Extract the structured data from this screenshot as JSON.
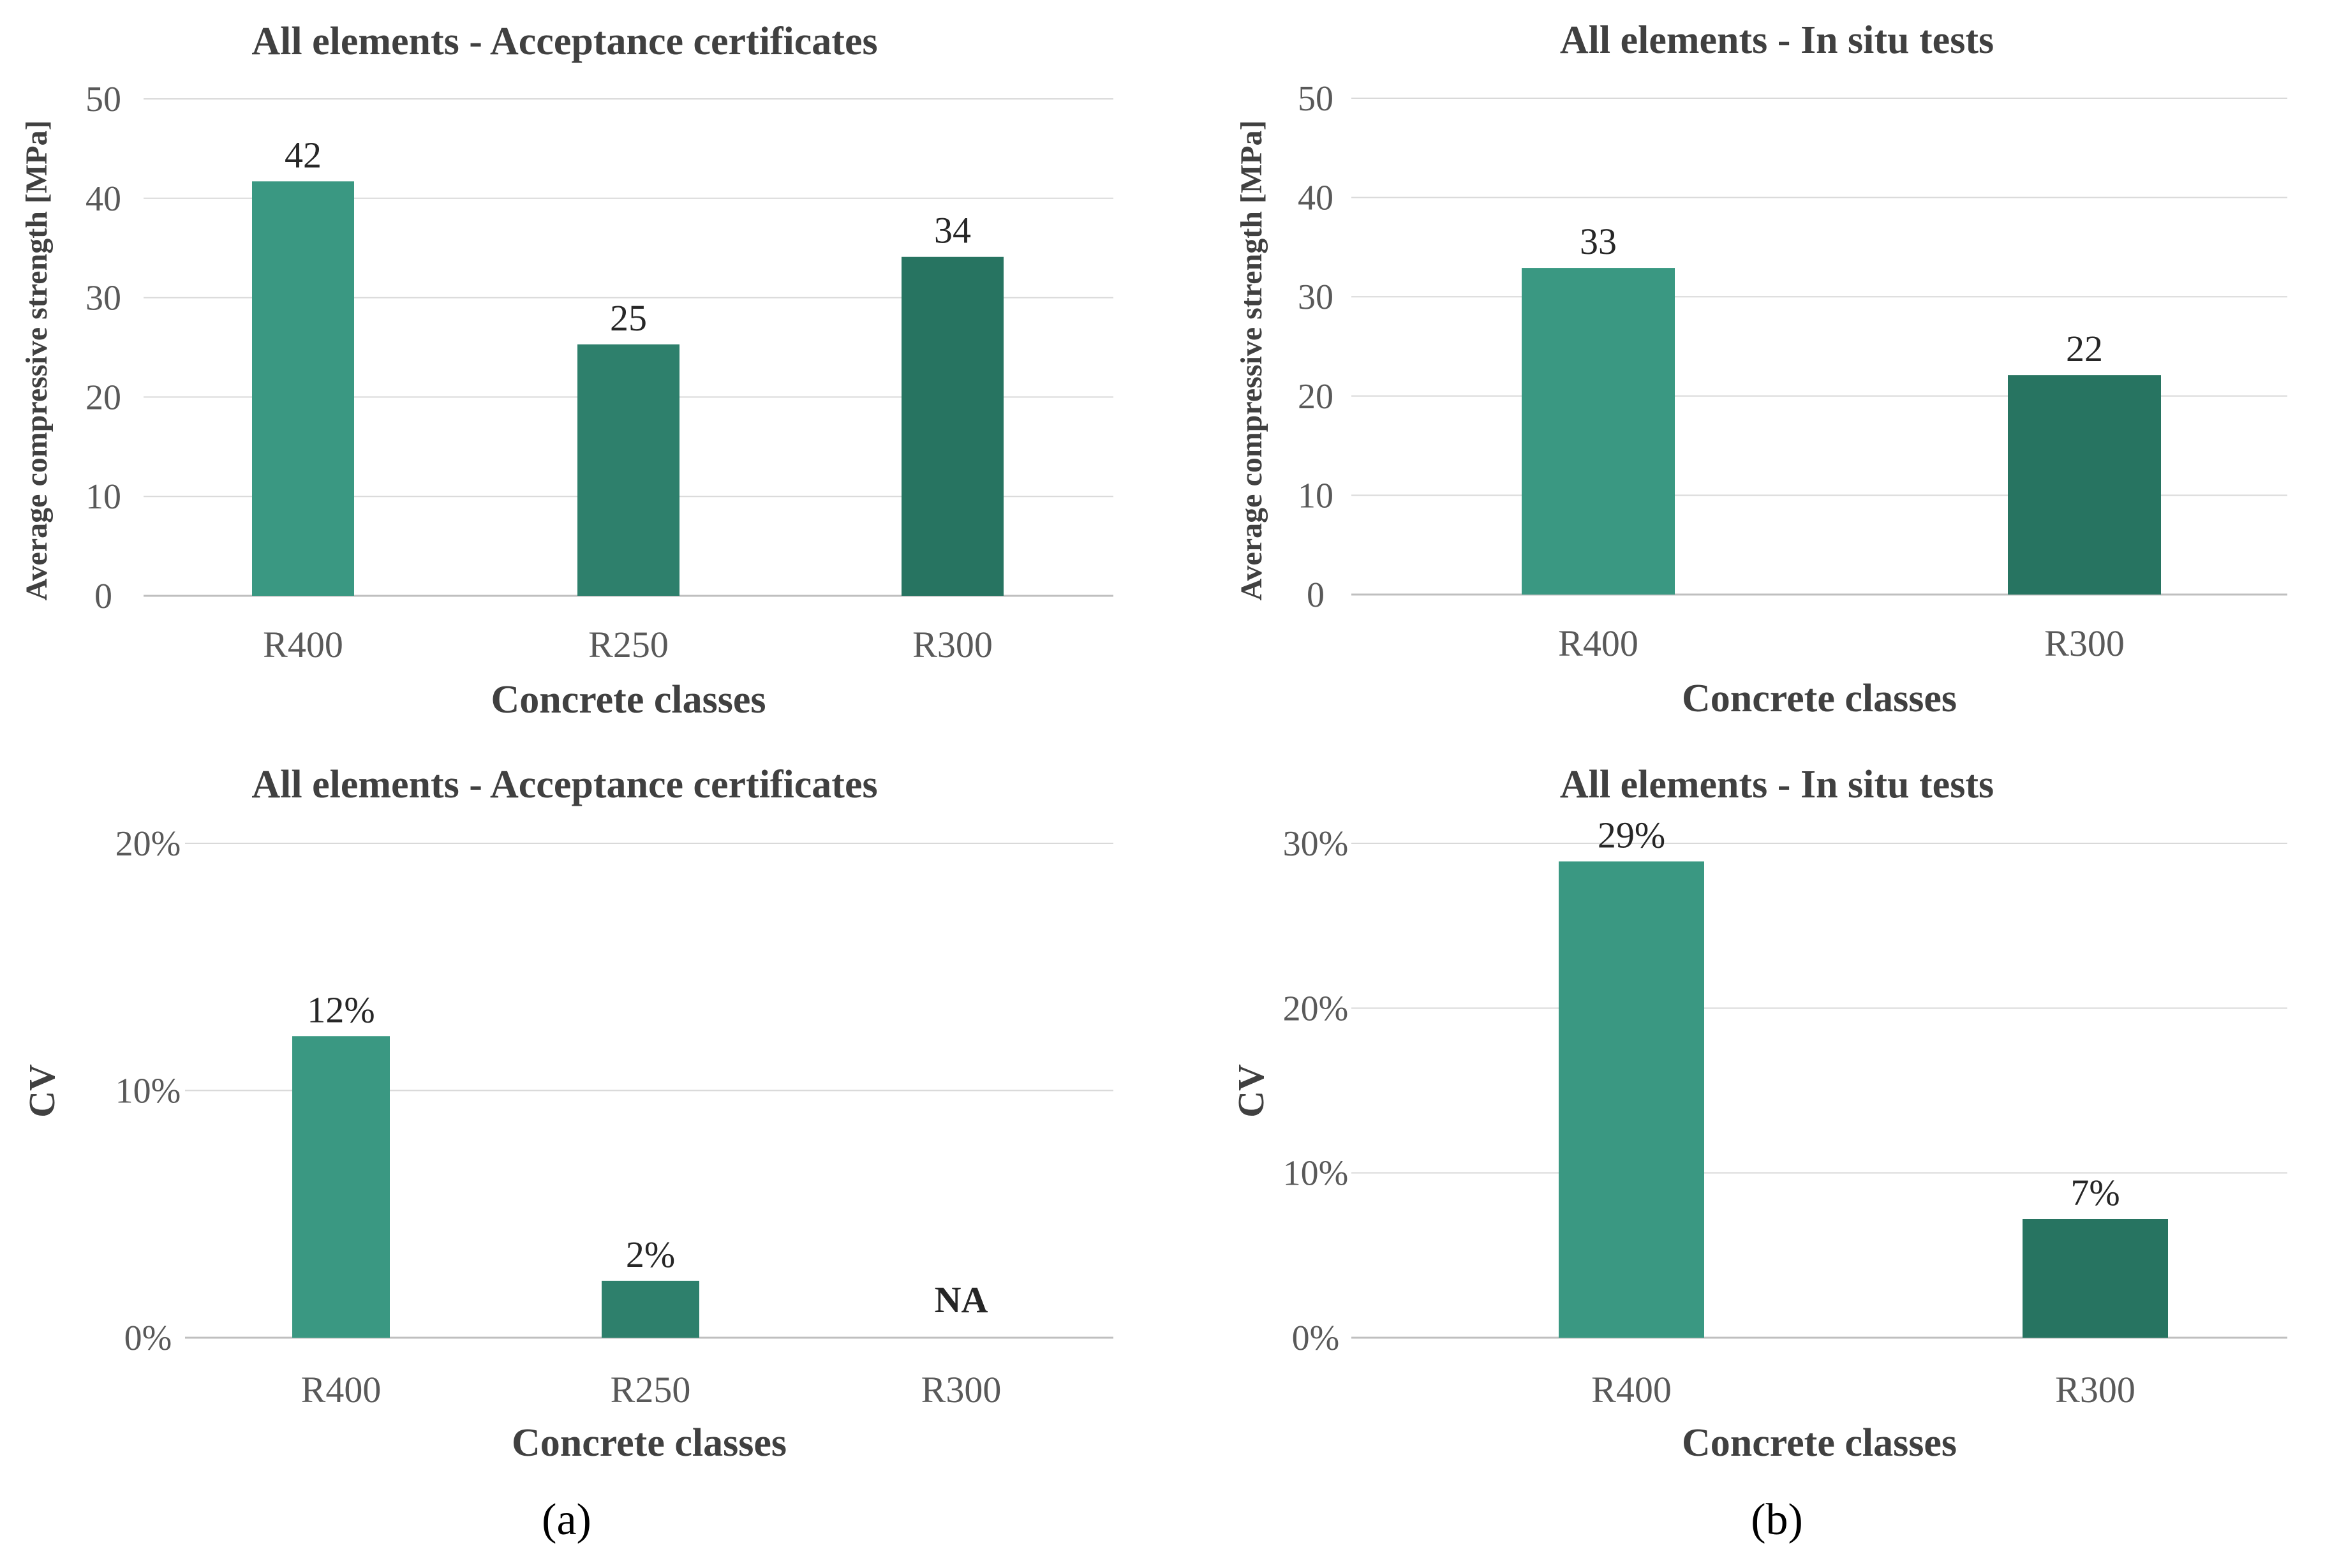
{
  "panel_labels": [
    "(a)",
    "(b)"
  ],
  "colors": {
    "bar_light": "#3a9882",
    "bar_mid": "#2e806c",
    "bar_dark": "#277461",
    "grid": "#d9d9d9",
    "text": "#595959",
    "title": "#404040",
    "label": "#262626"
  },
  "chart_data": [
    {
      "type": "bar",
      "title": "All elements - Acceptance certificates",
      "xlabel": "Concrete classes",
      "ylabel": "Average compressive strength [MPa]",
      "ylim": [
        0,
        50
      ],
      "yticks": [
        "0",
        "10",
        "20",
        "30",
        "40",
        "50"
      ],
      "grid": true,
      "categories": [
        "R400",
        "R250",
        "R300"
      ],
      "values": [
        41.7,
        25.3,
        34.1
      ],
      "data_labels": [
        "42",
        "25",
        "34"
      ],
      "bar_colors": [
        "#3a9882",
        "#2e806c",
        "#277461"
      ]
    },
    {
      "type": "bar",
      "title": "All elements - In situ tests",
      "xlabel": "Concrete classes",
      "ylabel": "Average compressive strength [MPa]",
      "ylim": [
        0,
        50
      ],
      "yticks": [
        "0",
        "10",
        "20",
        "30",
        "40",
        "50"
      ],
      "grid": true,
      "categories": [
        "R400",
        "R300"
      ],
      "values": [
        32.9,
        22.1
      ],
      "data_labels": [
        "33",
        "22"
      ],
      "bar_colors": [
        "#3a9882",
        "#277461"
      ]
    },
    {
      "type": "bar",
      "title": "All elements - Acceptance certificates",
      "xlabel": "Concrete classes",
      "ylabel": "CV",
      "ylim": [
        0,
        0.2
      ],
      "yticks": [
        "0%",
        "10%",
        "20%"
      ],
      "grid": true,
      "categories": [
        "R400",
        "R250",
        "R300"
      ],
      "values": [
        0.122,
        0.023,
        null
      ],
      "data_labels": [
        "12%",
        "2%",
        "NA"
      ],
      "bar_colors": [
        "#3a9882",
        "#2e806c",
        "#277461"
      ]
    },
    {
      "type": "bar",
      "title": "All elements - In situ tests",
      "xlabel": "Concrete classes",
      "ylabel": "CV",
      "ylim": [
        0,
        0.3
      ],
      "yticks": [
        "0%",
        "10%",
        "20%",
        "30%"
      ],
      "grid": true,
      "categories": [
        "R400",
        "R300"
      ],
      "values": [
        0.289,
        0.072
      ],
      "data_labels": [
        "29%",
        "7%"
      ],
      "bar_colors": [
        "#3a9882",
        "#277461"
      ]
    }
  ]
}
